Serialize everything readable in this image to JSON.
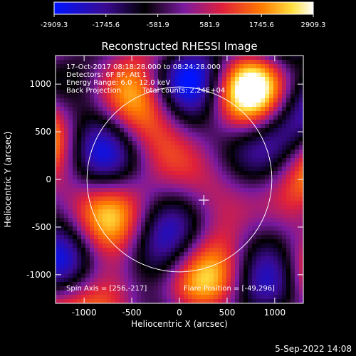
{
  "chart_data": {
    "type": "heatmap",
    "title": "Reconstructed RHESSI Image",
    "xlabel": "Heliocentric X (arcsec)",
    "ylabel": "Heliocentric Y (arcsec)",
    "xlim": [
      -1300,
      1300
    ],
    "ylim": [
      -1300,
      1300
    ],
    "xticks": [
      -1000,
      -500,
      0,
      500,
      1000
    ],
    "yticks": [
      -1000,
      -500,
      0,
      500,
      1000
    ],
    "colorbar": {
      "min": -2909.3,
      "max": 2909.3,
      "ticks": [
        -2909.3,
        -1745.6,
        -581.9,
        581.9,
        1745.6,
        2909.3
      ],
      "tick_labels": [
        "-2909.3",
        "-1745.6",
        "-581.9",
        "581.9",
        "1745.6",
        "2909.3"
      ],
      "colors": [
        "#0014ff",
        "#3a0a90",
        "#000000",
        "#7a1aa0",
        "#e0203a",
        "#ff7a00",
        "#ffe040",
        "#ffffff"
      ]
    },
    "annotations": {
      "time_range": "17-Oct-2017 08:18:28.000 to 08:24:28.000",
      "detectors": "Detectors: 6F 8F, Att 1",
      "energy_range": "Energy Range: 6.0 - 12.0 keV",
      "method": "Back Projection",
      "total_counts": "Total counts: 2.24E+04",
      "spin_axis": "Spin Axis = [256,-217]",
      "flare_position": "Flare Position = [-49,296]"
    },
    "solar_limb_radius_arcsec": 970,
    "spin_axis_marker": [
      256,
      -217
    ],
    "footer_date": "5-Sep-2022 14:08"
  }
}
